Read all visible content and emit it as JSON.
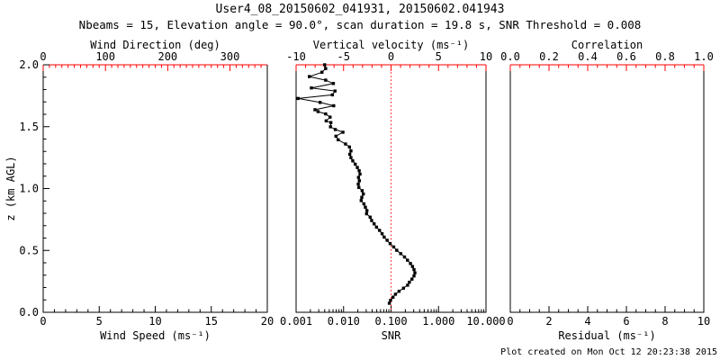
{
  "header": {
    "title": "User4_08_20150602_041931, 20150602.041943",
    "subtitle": "Nbeams = 15, Elevation angle = 90.0°, scan duration = 19.8 s, SNR Threshold = 0.008"
  },
  "footer": {
    "created_note": "Plot created on Mon Oct 12 20:23:38 2015"
  },
  "colors": {
    "background": "#ffffff",
    "primary_axis": "#000000",
    "secondary_axis": "#ff0000",
    "data_series": "#000000",
    "reference_line": "#ff0000"
  },
  "chart_data": [
    {
      "id": "wind",
      "type": "scatter",
      "bottom_axis": {
        "label": "Wind Speed (ms⁻¹)",
        "lim": [
          0,
          20
        ],
        "ticks": [
          0,
          5,
          10,
          15,
          20
        ],
        "tick_labels": [
          "0",
          "5",
          "10",
          "15",
          "20"
        ],
        "minor_step": 1
      },
      "top_axis": {
        "label": "Wind Direction (deg)",
        "lim": [
          0,
          360
        ],
        "ticks": [
          0,
          100,
          200,
          300
        ],
        "tick_labels": [
          "0",
          "100",
          "200",
          "300"
        ],
        "minor_step": 10
      },
      "left_axis": {
        "label": "z (km AGL)",
        "lim": [
          0,
          2
        ],
        "ticks": [
          0,
          0.5,
          1,
          1.5,
          2
        ],
        "tick_labels": [
          "0.0",
          "0.5",
          "1.0",
          "1.5",
          "2.0"
        ],
        "minor_step": 0.1
      },
      "points": []
    },
    {
      "id": "snr",
      "type": "line-scatter",
      "bottom_axis": {
        "label": "SNR",
        "scale": "log",
        "lim": [
          0.001,
          10
        ],
        "ticks": [
          0.001,
          0.01,
          0.1,
          1,
          10
        ],
        "tick_labels": [
          "0.001",
          "0.010",
          "0.100",
          "1.000",
          "10.000"
        ]
      },
      "top_axis": {
        "label": "Vertical velocity (ms⁻¹)",
        "lim": [
          -10,
          10
        ],
        "ticks": [
          -10,
          -5,
          0,
          5,
          10
        ],
        "tick_labels": [
          "-10",
          "-5",
          "0",
          "5",
          "10"
        ],
        "minor_step": 1
      },
      "left_axis": {
        "lim": [
          0,
          2
        ]
      },
      "reference_line": {
        "x": 0.1,
        "style": "dotted"
      },
      "points": [
        [
          0.004,
          2.0
        ],
        [
          0.0042,
          1.97
        ],
        [
          0.0035,
          1.94
        ],
        [
          0.0019,
          1.905
        ],
        [
          0.0042,
          1.876
        ],
        [
          0.0061,
          1.849
        ],
        [
          0.0021,
          1.813
        ],
        [
          0.0066,
          1.788
        ],
        [
          0.0058,
          1.757
        ],
        [
          0.0011,
          1.728
        ],
        [
          0.0032,
          1.696
        ],
        [
          0.0062,
          1.669
        ],
        [
          0.0025,
          1.637
        ],
        [
          0.0029,
          1.622
        ],
        [
          0.0042,
          1.603
        ],
        [
          0.0052,
          1.577
        ],
        [
          0.0043,
          1.547
        ],
        [
          0.0054,
          1.533
        ],
        [
          0.0053,
          1.499
        ],
        [
          0.0067,
          1.477
        ],
        [
          0.0097,
          1.455
        ],
        [
          0.0069,
          1.423
        ],
        [
          0.0077,
          1.394
        ],
        [
          0.011,
          1.36
        ],
        [
          0.0133,
          1.336
        ],
        [
          0.0143,
          1.304
        ],
        [
          0.0135,
          1.277
        ],
        [
          0.0143,
          1.25
        ],
        [
          0.0156,
          1.224
        ],
        [
          0.0176,
          1.197
        ],
        [
          0.0195,
          1.17
        ],
        [
          0.0213,
          1.144
        ],
        [
          0.0222,
          1.117
        ],
        [
          0.0206,
          1.09
        ],
        [
          0.0215,
          1.063
        ],
        [
          0.0204,
          1.036
        ],
        [
          0.021,
          1.009
        ],
        [
          0.0246,
          0.983
        ],
        [
          0.0261,
          0.956
        ],
        [
          0.0242,
          0.929
        ],
        [
          0.0235,
          0.903
        ],
        [
          0.0268,
          0.876
        ],
        [
          0.0288,
          0.849
        ],
        [
          0.031,
          0.822
        ],
        [
          0.0305,
          0.796
        ],
        [
          0.0363,
          0.769
        ],
        [
          0.039,
          0.742
        ],
        [
          0.044,
          0.715
        ],
        [
          0.0494,
          0.688
        ],
        [
          0.0573,
          0.662
        ],
        [
          0.0647,
          0.635
        ],
        [
          0.0716,
          0.608
        ],
        [
          0.0827,
          0.582
        ],
        [
          0.0957,
          0.555
        ],
        [
          0.1137,
          0.528
        ],
        [
          0.132,
          0.501
        ],
        [
          0.1594,
          0.474
        ],
        [
          0.1921,
          0.447
        ],
        [
          0.222,
          0.421
        ],
        [
          0.2564,
          0.394
        ],
        [
          0.2831,
          0.37
        ],
        [
          0.3046,
          0.345
        ],
        [
          0.318,
          0.319
        ],
        [
          0.3046,
          0.294
        ],
        [
          0.2755,
          0.268
        ],
        [
          0.2434,
          0.243
        ],
        [
          0.2232,
          0.219
        ],
        [
          0.1829,
          0.195
        ],
        [
          0.1473,
          0.17
        ],
        [
          0.124,
          0.146
        ],
        [
          0.11,
          0.122
        ],
        [
          0.0977,
          0.097
        ],
        [
          0.092,
          0.073
        ]
      ]
    },
    {
      "id": "residual",
      "type": "scatter",
      "bottom_axis": {
        "label": "Residual (ms⁻¹)",
        "lim": [
          0,
          10
        ],
        "ticks": [
          0,
          2,
          4,
          6,
          8,
          10
        ],
        "tick_labels": [
          "0",
          "2",
          "4",
          "6",
          "8",
          "10"
        ],
        "minor_step": 0.5
      },
      "top_axis": {
        "label": "Correlation",
        "lim": [
          0,
          1
        ],
        "ticks": [
          0,
          0.2,
          0.4,
          0.6,
          0.8,
          1
        ],
        "tick_labels": [
          "0.0",
          "0.2",
          "0.4",
          "0.6",
          "0.8",
          "1.0"
        ],
        "minor_step": 0.05
      },
      "left_axis": {
        "lim": [
          0,
          2
        ]
      },
      "points": []
    }
  ]
}
